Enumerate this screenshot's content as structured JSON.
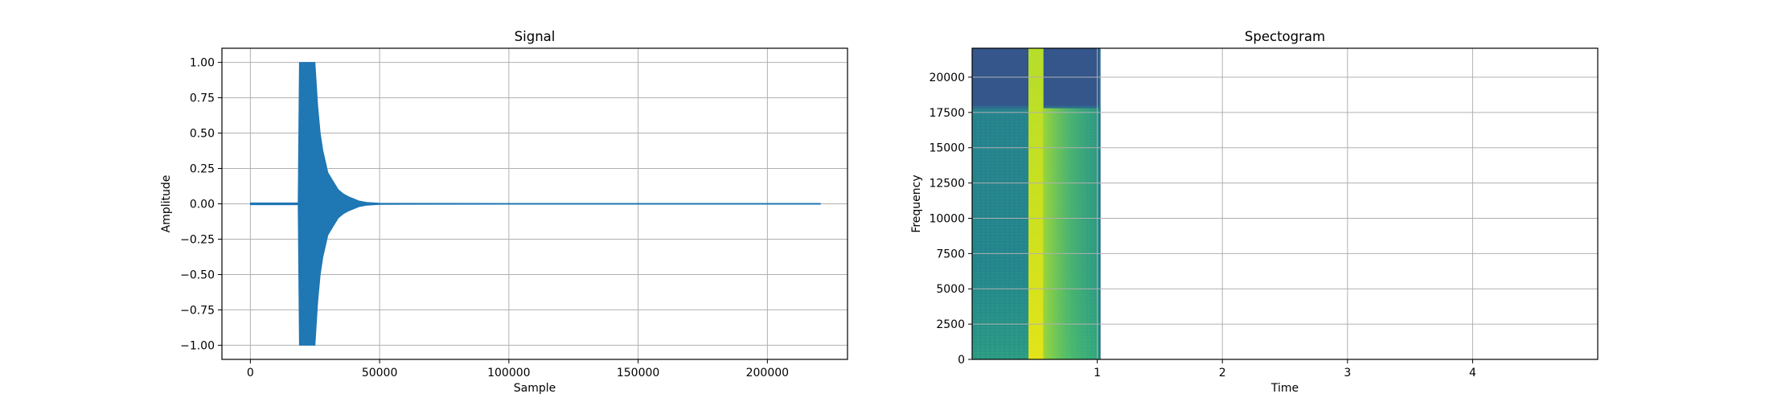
{
  "chart_data": [
    {
      "type": "line",
      "title": "Signal",
      "xlabel": "Sample",
      "ylabel": "Amplitude",
      "xlim": [
        -11000,
        231000
      ],
      "ylim": [
        -1.1,
        1.1
      ],
      "xticks": [
        0,
        50000,
        100000,
        150000,
        200000
      ],
      "xtick_labels": [
        "0",
        "50000",
        "100000",
        "150000",
        "200000"
      ],
      "yticks": [
        1.0,
        0.75,
        0.5,
        0.25,
        0.0,
        -0.25,
        -0.5,
        -0.75,
        -1.0
      ],
      "ytick_labels": [
        "1.00",
        "0.75",
        "0.50",
        "0.25",
        "0.00",
        "−0.25",
        "−0.50",
        "−0.75",
        "−1.00"
      ],
      "grid": true,
      "color": "#1f77b4",
      "series": [
        {
          "envelope": {
            "x": [
              0,
              18500,
              19000,
              25000,
              26000,
              27000,
              28000,
              29000,
              30000,
              32000,
              34000,
              36000,
              38000,
              40000,
              42000,
              45000,
              50000,
              100000,
              150000,
              220500
            ],
            "y_max": [
              0.006,
              0.006,
              1.0,
              1.0,
              0.7,
              0.5,
              0.38,
              0.3,
              0.22,
              0.16,
              0.1,
              0.07,
              0.05,
              0.035,
              0.02,
              0.01,
              0.004,
              0.003,
              0.003,
              0.003
            ],
            "y_min": [
              -0.006,
              -0.006,
              -1.0,
              -1.0,
              -0.7,
              -0.5,
              -0.38,
              -0.3,
              -0.22,
              -0.16,
              -0.1,
              -0.07,
              -0.05,
              -0.035,
              -0.02,
              -0.01,
              -0.004,
              -0.003,
              -0.003,
              -0.003
            ]
          }
        }
      ]
    },
    {
      "type": "heatmap",
      "title": "Spectogram",
      "xlabel": "Time",
      "ylabel": "Frequency",
      "xlim": [
        0,
        5
      ],
      "ylim": [
        0,
        22050
      ],
      "xticks": [
        1,
        2,
        3,
        4
      ],
      "xtick_labels": [
        "1",
        "2",
        "3",
        "4"
      ],
      "yticks": [
        0,
        2500,
        5000,
        7500,
        10000,
        12500,
        15000,
        17500,
        20000
      ],
      "ytick_labels": [
        "0",
        "2500",
        "5000",
        "7500",
        "10000",
        "12500",
        "15000",
        "17500",
        "20000"
      ],
      "grid": true,
      "colormap": "viridis",
      "data_extent_time": [
        0,
        1.02
      ],
      "burst_time": [
        0.45,
        0.57
      ],
      "cutoff_frequency": 17800
    }
  ]
}
